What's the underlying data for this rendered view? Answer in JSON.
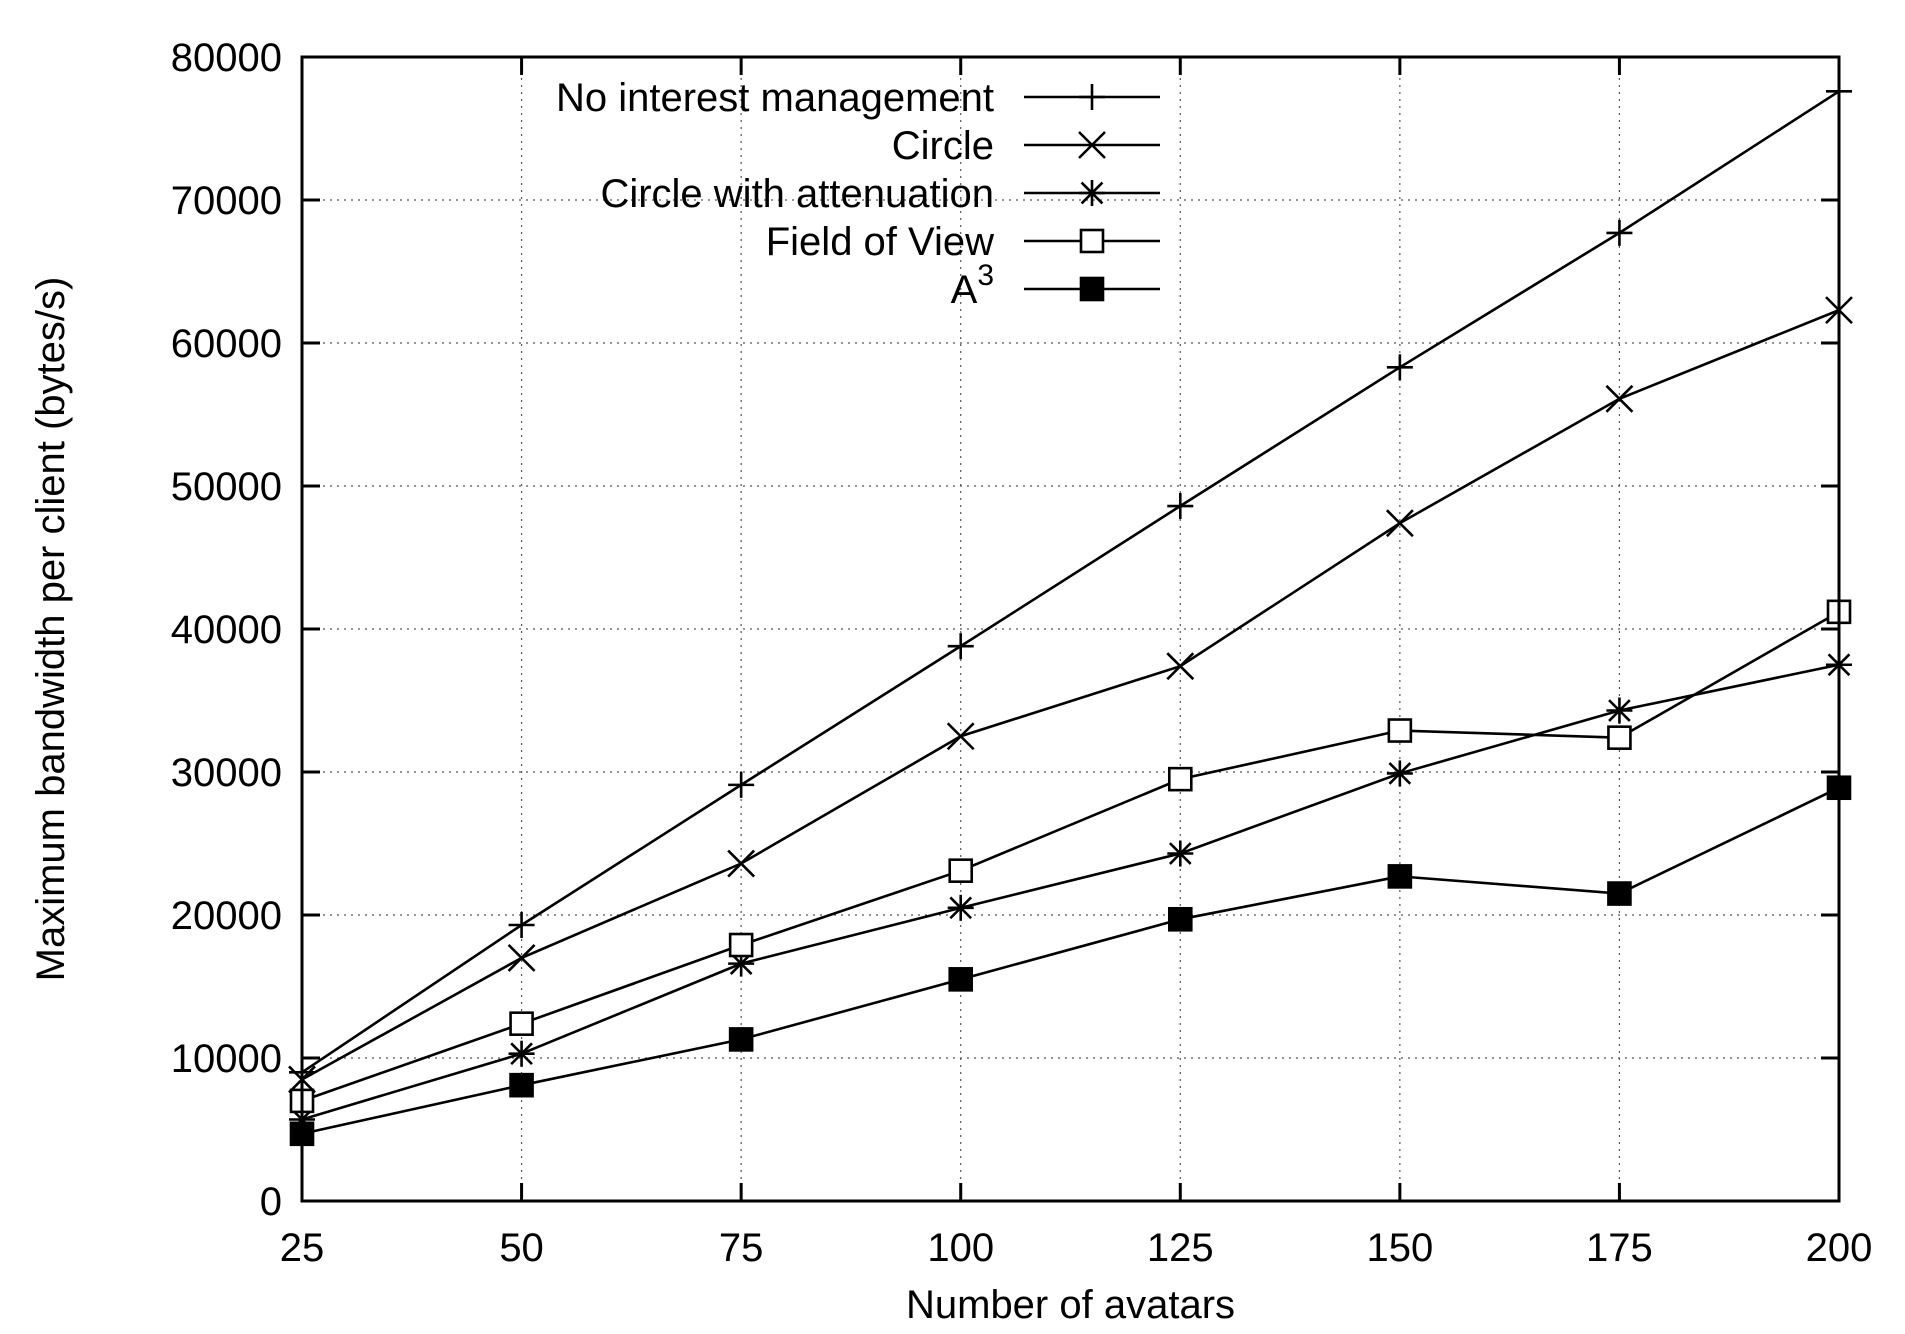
{
  "chart_data": {
    "type": "line",
    "xlabel": "Number of avatars",
    "ylabel": "Maximum bandwidth per client (bytes/s)",
    "x": [
      25,
      50,
      75,
      100,
      125,
      150,
      175,
      200
    ],
    "xlim": [
      25,
      200
    ],
    "ylim": [
      0,
      80000
    ],
    "xticks": [
      "25",
      "50",
      "75",
      "100",
      "125",
      "150",
      "175",
      "200"
    ],
    "yticks": [
      "0",
      "10000",
      "20000",
      "30000",
      "40000",
      "50000",
      "60000",
      "70000",
      "80000"
    ],
    "grid": true,
    "legend_position": "top-left",
    "series": [
      {
        "name": "No interest management",
        "marker": "plus",
        "values": [
          9000,
          19300,
          29100,
          38800,
          48600,
          58300,
          67700,
          77600
        ]
      },
      {
        "name": "Circle",
        "marker": "cross",
        "values": [
          8500,
          17000,
          23600,
          32500,
          37400,
          47400,
          56100,
          62300
        ]
      },
      {
        "name": "Circle with attenuation",
        "marker": "star",
        "values": [
          5700,
          10300,
          16600,
          20500,
          24300,
          29900,
          34300,
          37500
        ]
      },
      {
        "name": "Field of View",
        "marker": "open-square",
        "values": [
          7000,
          12400,
          17900,
          23100,
          29500,
          32900,
          32400,
          41200
        ]
      },
      {
        "name": "A",
        "name_superscript": "3",
        "marker": "filled-square",
        "values": [
          4700,
          8100,
          11300,
          15500,
          19700,
          22700,
          21500,
          28900
        ]
      }
    ]
  }
}
